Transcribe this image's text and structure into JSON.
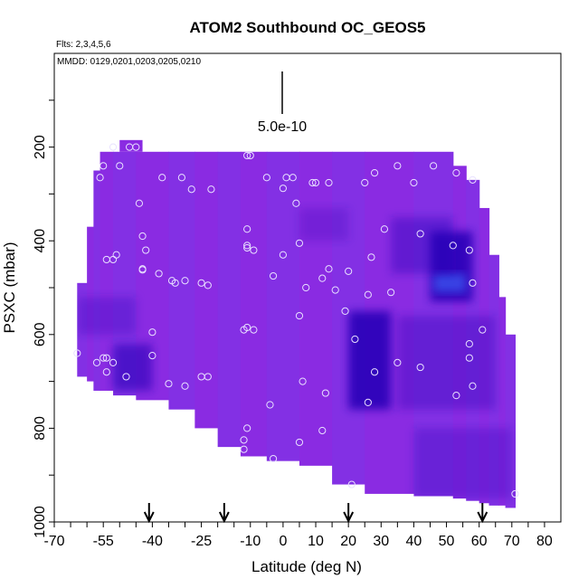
{
  "chart_data": {
    "type": "heatmap",
    "title": "ATOM2 Southbound OC_GEOS5",
    "flights_label": "Flts: 2,3,4,5,6",
    "dates_label": "MMDD: 0129,0201,0203,0205,0210",
    "scale_label": "5.0e-10",
    "xlabel": "Latitude (deg N)",
    "ylabel": "PSXC (mbar)",
    "xlim": [
      -70,
      85
    ],
    "ylim": [
      1000,
      0
    ],
    "x_ticks": [
      -70,
      -55,
      -40,
      -25,
      -10,
      0,
      10,
      20,
      30,
      40,
      50,
      60,
      70,
      80
    ],
    "y_ticks": [
      200,
      400,
      600,
      800,
      1000
    ],
    "colors": {
      "base": "#8a2be2",
      "dark": "#2a00b8",
      "bright": "#3a6cff"
    },
    "arrows_latitude": [
      -41,
      -18,
      20,
      61
    ],
    "columns": [
      {
        "x0": -63,
        "x1": -60,
        "p0": 490,
        "p1": 690
      },
      {
        "x0": -60,
        "x1": -58,
        "p0": 370,
        "p1": 700
      },
      {
        "x0": -58,
        "x1": -56,
        "p0": 250,
        "p1": 720
      },
      {
        "x0": -56,
        "x1": -52,
        "p0": 210,
        "p1": 720
      },
      {
        "x0": -52,
        "x1": -45,
        "p0": 210,
        "p1": 730
      },
      {
        "x0": -45,
        "x1": -35,
        "p0": 210,
        "p1": 740
      },
      {
        "x0": -35,
        "x1": -27,
        "p0": 210,
        "p1": 760
      },
      {
        "x0": -27,
        "x1": -20,
        "p0": 210,
        "p1": 800
      },
      {
        "x0": -20,
        "x1": -13,
        "p0": 210,
        "p1": 840
      },
      {
        "x0": -13,
        "x1": -5,
        "p0": 210,
        "p1": 860
      },
      {
        "x0": -5,
        "x1": 5,
        "p0": 210,
        "p1": 870
      },
      {
        "x0": 5,
        "x1": 15,
        "p0": 210,
        "p1": 880
      },
      {
        "x0": 15,
        "x1": 25,
        "p0": 210,
        "p1": 920
      },
      {
        "x0": 25,
        "x1": 40,
        "p0": 210,
        "p1": 940
      },
      {
        "x0": 40,
        "x1": 52,
        "p0": 210,
        "p1": 945
      },
      {
        "x0": 52,
        "x1": 56,
        "p0": 240,
        "p1": 950
      },
      {
        "x0": 56,
        "x1": 60,
        "p0": 270,
        "p1": 955
      },
      {
        "x0": 60,
        "x1": 63,
        "p0": 330,
        "p1": 960
      },
      {
        "x0": 63,
        "x1": 66,
        "p0": 430,
        "p1": 965
      },
      {
        "x0": 66,
        "x1": 68,
        "p0": 520,
        "p1": 965
      },
      {
        "x0": 68,
        "x1": 71,
        "p0": 600,
        "p1": 970
      }
    ],
    "top_patch": {
      "x0": -50,
      "x1": -43,
      "p0": 185,
      "p1": 210
    },
    "dark_regions": [
      {
        "x0": 20,
        "x1": 33,
        "p0": 550,
        "p1": 760,
        "intensity": 0.9
      },
      {
        "x0": 45,
        "x1": 58,
        "p0": 380,
        "p1": 530,
        "intensity": 0.9
      },
      {
        "x0": 46,
        "x1": 56,
        "p0": 470,
        "p1": 510,
        "intensity": 0.6,
        "bright": true
      },
      {
        "x0": -52,
        "x1": -40,
        "p0": 620,
        "p1": 720,
        "intensity": 0.6
      },
      {
        "x0": 33,
        "x1": 52,
        "p0": 350,
        "p1": 470,
        "intensity": 0.4
      },
      {
        "x0": 35,
        "x1": 65,
        "p0": 560,
        "p1": 760,
        "intensity": 0.35
      },
      {
        "x0": 40,
        "x1": 70,
        "p0": 800,
        "p1": 950,
        "intensity": 0.3
      },
      {
        "x0": 5,
        "x1": 20,
        "p0": 330,
        "p1": 400,
        "intensity": 0.25
      },
      {
        "x0": -63,
        "x1": -45,
        "p0": 520,
        "p1": 600,
        "intensity": 0.3
      }
    ],
    "sample_points": [
      [
        -52,
        200
      ],
      [
        -47,
        200
      ],
      [
        -45,
        200
      ],
      [
        -55,
        240
      ],
      [
        -50,
        240
      ],
      [
        -37,
        265
      ],
      [
        -31,
        265
      ],
      [
        -28,
        290
      ],
      [
        -22,
        290
      ],
      [
        -56,
        265
      ],
      [
        -44,
        320
      ],
      [
        -11,
        218
      ],
      [
        -10,
        218
      ],
      [
        -5,
        265
      ],
      [
        0,
        288
      ],
      [
        1,
        265
      ],
      [
        3,
        265
      ],
      [
        4,
        320
      ],
      [
        9,
        276
      ],
      [
        10,
        276
      ],
      [
        14,
        276
      ],
      [
        25,
        276
      ],
      [
        28,
        255
      ],
      [
        35,
        240
      ],
      [
        40,
        276
      ],
      [
        46,
        240
      ],
      [
        53,
        255
      ],
      [
        58,
        270
      ],
      [
        -51,
        430
      ],
      [
        -52,
        440
      ],
      [
        -54,
        440
      ],
      [
        -43,
        390
      ],
      [
        -42,
        420
      ],
      [
        -43,
        460
      ],
      [
        -43,
        462
      ],
      [
        -38,
        470
      ],
      [
        -34,
        485
      ],
      [
        -33,
        490
      ],
      [
        -30,
        485
      ],
      [
        -25,
        490
      ],
      [
        -23,
        495
      ],
      [
        -11,
        375
      ],
      [
        -11,
        410
      ],
      [
        -11,
        415
      ],
      [
        -9,
        420
      ],
      [
        -3,
        475
      ],
      [
        0,
        430
      ],
      [
        5,
        405
      ],
      [
        7,
        500
      ],
      [
        12,
        480
      ],
      [
        14,
        460
      ],
      [
        16,
        505
      ],
      [
        20,
        465
      ],
      [
        26,
        515
      ],
      [
        27,
        435
      ],
      [
        31,
        375
      ],
      [
        33,
        510
      ],
      [
        42,
        385
      ],
      [
        52,
        410
      ],
      [
        57,
        420
      ],
      [
        58,
        490
      ],
      [
        -63,
        640
      ],
      [
        -57,
        660
      ],
      [
        -55,
        650
      ],
      [
        -54,
        650
      ],
      [
        -54,
        680
      ],
      [
        -52,
        660
      ],
      [
        -48,
        690
      ],
      [
        -40,
        595
      ],
      [
        -40,
        645
      ],
      [
        -35,
        705
      ],
      [
        -30,
        710
      ],
      [
        -25,
        690
      ],
      [
        -23,
        690
      ],
      [
        -12,
        590
      ],
      [
        -11,
        585
      ],
      [
        -9,
        590
      ],
      [
        5,
        560
      ],
      [
        6,
        700
      ],
      [
        13,
        725
      ],
      [
        19,
        550
      ],
      [
        22,
        610
      ],
      [
        28,
        680
      ],
      [
        35,
        660
      ],
      [
        42,
        670
      ],
      [
        53,
        730
      ],
      [
        57,
        620
      ],
      [
        57,
        650
      ],
      [
        58,
        710
      ],
      [
        61,
        590
      ],
      [
        -12,
        825
      ],
      [
        -12,
        845
      ],
      [
        -11,
        800
      ],
      [
        -4,
        750
      ],
      [
        -3,
        865
      ],
      [
        5,
        830
      ],
      [
        12,
        805
      ],
      [
        21,
        920
      ],
      [
        26,
        745
      ],
      [
        71,
        940
      ]
    ]
  }
}
